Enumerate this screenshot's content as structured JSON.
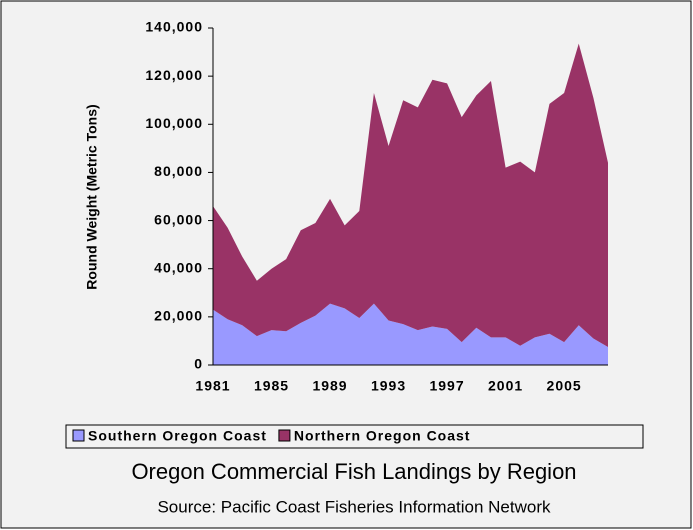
{
  "chart_data": {
    "type": "stacked-area",
    "title": "Oregon Commercial Fish Landings by Region",
    "subtitle": "Source:  Pacific Coast Fisheries Information Network",
    "ylabel": "Round Weight (Metric Tons)",
    "categories": [
      "1981",
      null,
      null,
      null,
      "1985",
      null,
      null,
      null,
      "1989",
      null,
      null,
      null,
      "1993",
      null,
      null,
      null,
      "1997",
      null,
      null,
      null,
      "2001",
      null,
      null,
      null,
      "2005",
      null,
      null,
      null
    ],
    "series": [
      {
        "name": "Southern Oregon Coast",
        "color": "#9999ff",
        "values": [
          23000,
          19000,
          16500,
          12000,
          14500,
          14000,
          17500,
          20500,
          25500,
          23500,
          19500,
          25500,
          18500,
          17000,
          14500,
          16000,
          15000,
          9500,
          15500,
          11500,
          11500,
          8000,
          11500,
          13000,
          9500,
          16500,
          11000,
          7500
        ]
      },
      {
        "name": "Northern Oregon Coast",
        "color": "#993366",
        "values": [
          43000,
          38000,
          28500,
          23000,
          25500,
          30000,
          38500,
          38500,
          43500,
          34500,
          44500,
          87500,
          72500,
          93000,
          92500,
          102500,
          102000,
          93500,
          96500,
          106500,
          70500,
          76500,
          68500,
          95500,
          103500,
          117000,
          100000,
          76500
        ]
      }
    ],
    "ylim": [
      0,
      140000
    ],
    "yticks": [
      0,
      {
        "value": 20000,
        "label": "20,000"
      },
      {
        "value": 40000,
        "label": "40,000"
      },
      {
        "value": 60000,
        "label": "60,000"
      },
      {
        "value": 80000,
        "label": "80,000"
      },
      {
        "value": 100000,
        "label": "100,000"
      },
      {
        "value": 120000,
        "label": "120,000"
      },
      {
        "value": 140000,
        "label": "140,000"
      }
    ],
    "legend": "bottom"
  }
}
